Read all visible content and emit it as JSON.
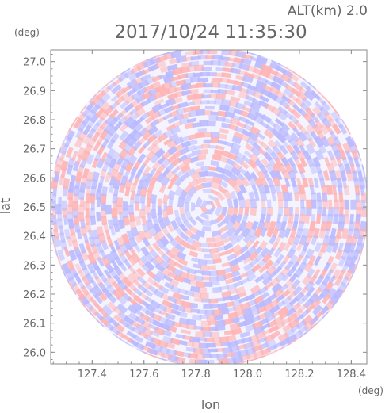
{
  "header": {
    "altitude": "ALT(km)  2.0",
    "timestamp": "2017/10/24  11:35:30"
  },
  "chart_data": {
    "type": "heatmap",
    "title": "2017/10/24  11:35:30",
    "subtitle": "ALT(km)  2.0",
    "xlabel": "lon",
    "ylabel": "lat",
    "x_unit": "(deg)",
    "y_unit": "(deg)",
    "xlim": [
      127.24,
      128.46
    ],
    "ylim": [
      25.96,
      27.04
    ],
    "xticks": [
      "127.4",
      "127.6",
      "127.8",
      "128.0",
      "128.2",
      "128.4"
    ],
    "yticks": [
      "26.0",
      "26.1",
      "26.2",
      "26.3",
      "26.4",
      "26.5",
      "26.6",
      "26.7",
      "26.8",
      "26.9",
      "27.0"
    ],
    "center": [
      127.85,
      26.5
    ],
    "radius_deg_lat": 0.55,
    "colors": {
      "positive": "#ffb3b3",
      "negative": "#b8b8ff",
      "neutral": "#f4f4ff",
      "axis": "#888888",
      "text": "#666666"
    }
  }
}
